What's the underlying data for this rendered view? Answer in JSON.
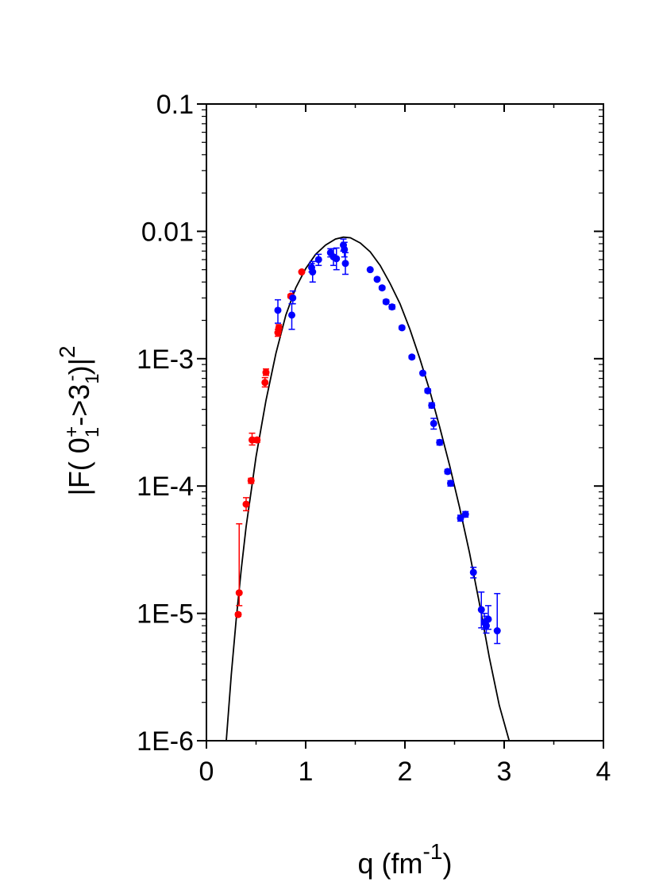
{
  "chart_data": {
    "type": "scatter",
    "title": "",
    "xlabel": {
      "main": "q (fm",
      "sup": "-1",
      "close": ")"
    },
    "ylabel": {
      "prefix": "|F( 0",
      "sub1": "1",
      "sup1": "+",
      "mid": "->3",
      "sub2": "1",
      "sup2": "-",
      "close": ")|",
      "sup3": "2"
    },
    "xlim": [
      0,
      4
    ],
    "ylim": [
      1e-06,
      0.1
    ],
    "yscale": "log",
    "x_ticks": [
      {
        "value": 0,
        "label": "0"
      },
      {
        "value": 1,
        "label": "1"
      },
      {
        "value": 2,
        "label": "2"
      },
      {
        "value": 3,
        "label": "3"
      },
      {
        "value": 4,
        "label": "4"
      }
    ],
    "y_ticks": [
      {
        "value": 1e-06,
        "label": "1E-6"
      },
      {
        "value": 1e-05,
        "label": "1E-5"
      },
      {
        "value": 0.0001,
        "label": "1E-4"
      },
      {
        "value": 0.001,
        "label": "1E-3"
      },
      {
        "value": 0.01,
        "label": "0.01"
      },
      {
        "value": 0.1,
        "label": "0.1"
      }
    ],
    "grid": false,
    "legend": "none",
    "series": [
      {
        "color": "#ff0000",
        "points": [
          {
            "x": 0.32,
            "y": 9.8e-06,
            "err": [
              3e-07,
              3e-07
            ]
          },
          {
            "x": 0.33,
            "y": 1.45e-05,
            "err": [
              3e-06,
              3.6e-05
            ]
          },
          {
            "x": 0.4,
            "y": 7.2e-05,
            "err": [
              8e-06,
              9e-06
            ]
          },
          {
            "x": 0.45,
            "y": 0.00011,
            "err": [
              5e-06,
              5e-06
            ]
          },
          {
            "x": 0.46,
            "y": 0.00023,
            "err": [
              2e-05,
              3e-05
            ]
          },
          {
            "x": 0.51,
            "y": 0.00023,
            "err": [
              1e-05,
              1e-05
            ]
          },
          {
            "x": 0.59,
            "y": 0.00065,
            "err": [
              5e-05,
              6e-05
            ]
          },
          {
            "x": 0.6,
            "y": 0.00078,
            "err": [
              4e-05,
              5e-05
            ]
          },
          {
            "x": 0.72,
            "y": 0.0016,
            "err": [
              0.0001,
              0.0001
            ]
          },
          {
            "x": 0.73,
            "y": 0.00175,
            "err": [
              0.0001,
              0.0001
            ]
          },
          {
            "x": 0.85,
            "y": 0.0031,
            "err": [
              0.0001,
              0.0001
            ]
          },
          {
            "x": 0.96,
            "y": 0.0048,
            "err": [
              0.0001,
              0.0001
            ]
          }
        ]
      },
      {
        "color": "#0000ff",
        "points": [
          {
            "x": 0.72,
            "y": 0.0024,
            "err": [
              0.0005,
              0.0005
            ]
          },
          {
            "x": 0.86,
            "y": 0.0022,
            "err": [
              0.0005,
              0.0005
            ]
          },
          {
            "x": 0.87,
            "y": 0.003,
            "err": [
              0.0003,
              0.0004
            ]
          },
          {
            "x": 1.06,
            "y": 0.0052,
            "err": [
              0.0004,
              0.0004
            ]
          },
          {
            "x": 1.07,
            "y": 0.0048,
            "err": [
              0.0008,
              0.001
            ]
          },
          {
            "x": 1.13,
            "y": 0.006,
            "err": [
              0.0006,
              0.0006
            ]
          },
          {
            "x": 1.25,
            "y": 0.0068,
            "err": [
              0.0005,
              0.0005
            ]
          },
          {
            "x": 1.28,
            "y": 0.0063,
            "err": [
              0.0009,
              0.001
            ]
          },
          {
            "x": 1.31,
            "y": 0.0061,
            "err": [
              0.0011,
              0.0013
            ]
          },
          {
            "x": 1.38,
            "y": 0.0078,
            "err": [
              0.0008,
              0.0009
            ]
          },
          {
            "x": 1.39,
            "y": 0.0072,
            "err": [
              0.0009,
              0.001
            ]
          },
          {
            "x": 1.4,
            "y": 0.0056,
            "err": [
              0.001,
              0.0012
            ]
          },
          {
            "x": 1.65,
            "y": 0.005,
            "err": [
              0.0001,
              0.0001
            ]
          },
          {
            "x": 1.72,
            "y": 0.0042,
            "err": [
              0.0001,
              0.0001
            ]
          },
          {
            "x": 1.77,
            "y": 0.0036,
            "err": [
              0.0001,
              0.0001
            ]
          },
          {
            "x": 1.81,
            "y": 0.0028,
            "err": [
              0.0001,
              0.0001
            ]
          },
          {
            "x": 1.87,
            "y": 0.00255,
            "err": [
              0.0001,
              0.0001
            ]
          },
          {
            "x": 1.97,
            "y": 0.00175,
            "err": [
              5e-05,
              5e-05
            ]
          },
          {
            "x": 2.07,
            "y": 0.00103,
            "err": [
              3e-05,
              3e-05
            ]
          },
          {
            "x": 2.18,
            "y": 0.00077,
            "err": [
              2e-05,
              2e-05
            ]
          },
          {
            "x": 2.23,
            "y": 0.00056,
            "err": [
              2e-05,
              2e-05
            ]
          },
          {
            "x": 2.27,
            "y": 0.00043,
            "err": [
              2e-05,
              2e-05
            ]
          },
          {
            "x": 2.29,
            "y": 0.00031,
            "err": [
              3e-05,
              3e-05
            ]
          },
          {
            "x": 2.35,
            "y": 0.00022,
            "err": [
              1e-05,
              1e-05
            ]
          },
          {
            "x": 2.43,
            "y": 0.00013,
            "err": [
              5e-06,
              5e-06
            ]
          },
          {
            "x": 2.46,
            "y": 0.000105,
            "err": [
              5e-06,
              5e-06
            ]
          },
          {
            "x": 2.56,
            "y": 5.6e-05,
            "err": [
              3e-06,
              3e-06
            ]
          },
          {
            "x": 2.61,
            "y": 6e-05,
            "err": [
              3e-06,
              3e-06
            ]
          },
          {
            "x": 2.69,
            "y": 2.1e-05,
            "err": [
              2e-06,
              2e-06
            ]
          },
          {
            "x": 2.77,
            "y": 1.07e-05,
            "err": [
              3e-06,
              4e-06
            ]
          },
          {
            "x": 2.8,
            "y": 8.5e-06,
            "err": [
              1e-06,
              1.5e-06
            ]
          },
          {
            "x": 2.82,
            "y": 8e-06,
            "err": [
              1e-06,
              1.5e-06
            ]
          },
          {
            "x": 2.84,
            "y": 9e-06,
            "err": [
              1.5e-06,
              2.5e-06
            ]
          },
          {
            "x": 2.93,
            "y": 7.3e-06,
            "err": [
              1.5e-06,
              7e-06
            ]
          }
        ]
      }
    ],
    "curve": {
      "color": "#000000",
      "points": [
        [
          0.2,
          1e-06
        ],
        [
          0.25,
          3.3e-06
        ],
        [
          0.3,
          9e-06
        ],
        [
          0.35,
          2.2e-05
        ],
        [
          0.4,
          4.8e-05
        ],
        [
          0.5,
          0.00017
        ],
        [
          0.6,
          0.00047
        ],
        [
          0.7,
          0.0011
        ],
        [
          0.8,
          0.0022
        ],
        [
          0.9,
          0.0036
        ],
        [
          1.0,
          0.0051
        ],
        [
          1.1,
          0.0066
        ],
        [
          1.2,
          0.0078
        ],
        [
          1.3,
          0.0087
        ],
        [
          1.38,
          0.009
        ],
        [
          1.45,
          0.0089
        ],
        [
          1.55,
          0.0081
        ],
        [
          1.65,
          0.0069
        ],
        [
          1.75,
          0.0054
        ],
        [
          1.85,
          0.0039
        ],
        [
          1.95,
          0.0027
        ],
        [
          2.05,
          0.0017
        ],
        [
          2.15,
          0.001
        ],
        [
          2.25,
          0.00056
        ],
        [
          2.35,
          0.00029
        ],
        [
          2.45,
          0.000145
        ],
        [
          2.55,
          6.8e-05
        ],
        [
          2.65,
          3e-05
        ],
        [
          2.75,
          1.2e-05
        ],
        [
          2.85,
          4.5e-06
        ],
        [
          2.95,
          1.9e-06
        ],
        [
          3.05,
          1e-06
        ]
      ]
    }
  }
}
